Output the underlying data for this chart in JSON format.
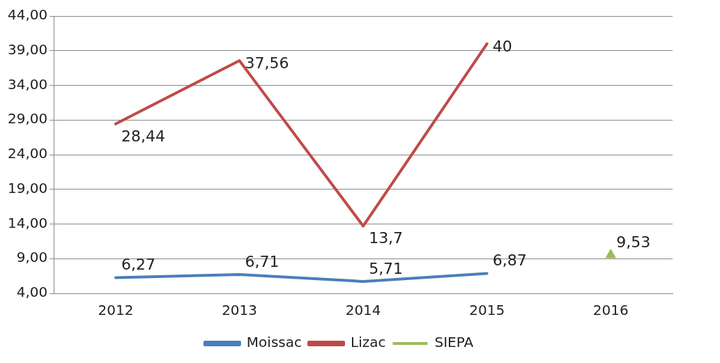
{
  "chart_data": {
    "type": "line",
    "categories": [
      "2012",
      "2013",
      "2014",
      "2015",
      "2016"
    ],
    "series": [
      {
        "name": "Moissac",
        "color": "#4a7ebb",
        "values": [
          6.27,
          6.71,
          5.71,
          6.87,
          null
        ],
        "value_labels": [
          "6,27",
          "6,71",
          "5,71",
          "6,87",
          null
        ]
      },
      {
        "name": "Lizac",
        "color": "#be4b48",
        "values": [
          28.44,
          37.56,
          13.7,
          40,
          null
        ],
        "value_labels": [
          "28,44",
          "37,56",
          "13,7",
          "40",
          null
        ]
      },
      {
        "name": "SIEPA",
        "type": "scatter",
        "marker": "triangle",
        "color": "#9bbb59",
        "values": [
          null,
          null,
          null,
          null,
          9.53
        ],
        "value_labels": [
          null,
          null,
          null,
          null,
          "9,53"
        ]
      }
    ],
    "ylim": [
      4,
      44
    ],
    "yticks": [
      {
        "value": 4,
        "label": "4,00"
      },
      {
        "value": 9,
        "label": "9,00"
      },
      {
        "value": 14,
        "label": "14,00"
      },
      {
        "value": 19,
        "label": "19,00"
      },
      {
        "value": 24,
        "label": "24,00"
      },
      {
        "value": 29,
        "label": "29,00"
      },
      {
        "value": 34,
        "label": "34,00"
      },
      {
        "value": 39,
        "label": "39,00"
      },
      {
        "value": 44,
        "label": "44,00"
      }
    ],
    "grid": "y",
    "legend": "bottom",
    "marker": "none",
    "line_style": "solid"
  }
}
